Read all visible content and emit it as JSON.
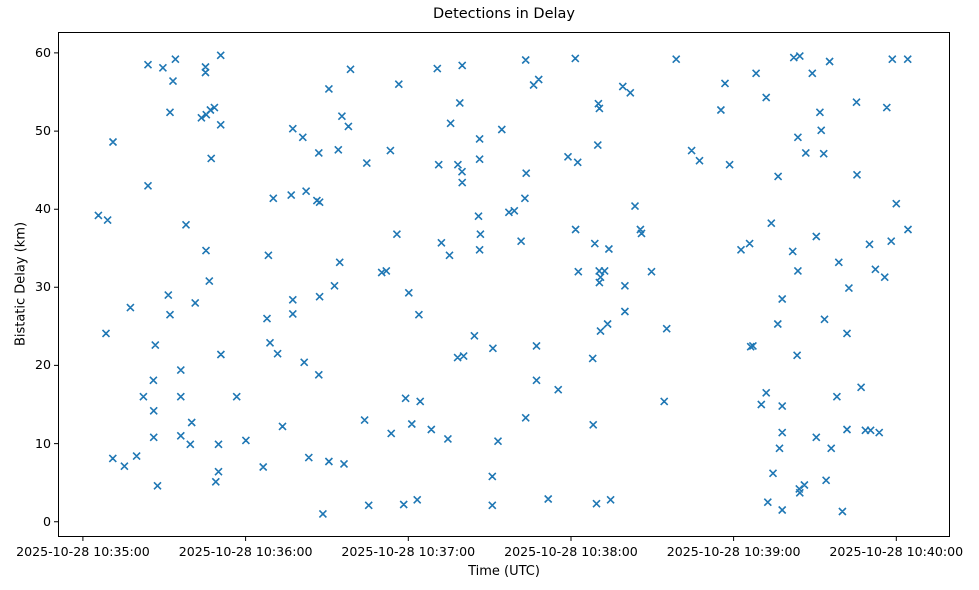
{
  "figure": {
    "background": "#ffffff",
    "frame_color": "#000000"
  },
  "chart_data": {
    "type": "scatter",
    "title": "Detections in Delay",
    "xlabel": "Time (UTC)",
    "ylabel": "Bistatic Delay (km)",
    "legend": null,
    "grid": false,
    "marker": "x",
    "marker_color": "#1f77b4",
    "x_tick_labels": [
      "2025-10-28 10:35:00",
      "2025-10-28 10:36:00",
      "2025-10-28 10:37:00",
      "2025-10-28 10:38:00",
      "2025-10-28 10:39:00",
      "2025-10-28 10:40:00"
    ],
    "x_tick_seconds": [
      0,
      60,
      120,
      180,
      240,
      300
    ],
    "x_range_seconds": [
      -9.2,
      319.8
    ],
    "y_ticks": [
      0,
      10,
      20,
      30,
      40,
      50,
      60
    ],
    "y_range": [
      -1.96,
      62.68
    ],
    "points_format": "[seconds_after_10:35:00_UTC, bistatic_delay_km]",
    "points": [
      [
        24.0,
        58.5
      ],
      [
        29.5,
        58.1
      ],
      [
        34.1,
        59.2
      ],
      [
        50.8,
        59.7
      ],
      [
        45.2,
        58.2
      ],
      [
        45.2,
        57.5
      ],
      [
        33.2,
        56.4
      ],
      [
        32.1,
        52.4
      ],
      [
        43.7,
        51.7
      ],
      [
        45.5,
        52.1
      ],
      [
        47.0,
        52.7
      ],
      [
        48.5,
        53.0
      ],
      [
        50.8,
        50.8
      ],
      [
        11.1,
        48.6
      ],
      [
        47.3,
        46.5
      ],
      [
        24.0,
        43.0
      ],
      [
        98.7,
        57.9
      ],
      [
        90.7,
        55.4
      ],
      [
        116.5,
        56.0
      ],
      [
        130.7,
        58.0
      ],
      [
        139.9,
        58.4
      ],
      [
        139.0,
        53.6
      ],
      [
        95.5,
        51.9
      ],
      [
        97.9,
        50.6
      ],
      [
        77.4,
        50.3
      ],
      [
        81.1,
        49.2
      ],
      [
        135.6,
        51.0
      ],
      [
        154.5,
        50.2
      ],
      [
        146.3,
        49.0
      ],
      [
        87.0,
        47.2
      ],
      [
        94.2,
        47.6
      ],
      [
        113.4,
        47.5
      ],
      [
        104.7,
        45.9
      ],
      [
        131.2,
        45.7
      ],
      [
        138.3,
        45.7
      ],
      [
        139.8,
        44.8
      ],
      [
        146.3,
        46.4
      ],
      [
        139.9,
        43.4
      ],
      [
        82.3,
        42.3
      ],
      [
        163.3,
        59.1
      ],
      [
        181.6,
        59.3
      ],
      [
        218.8,
        59.2
      ],
      [
        168.1,
        56.6
      ],
      [
        166.2,
        55.9
      ],
      [
        199.1,
        55.7
      ],
      [
        201.9,
        54.9
      ],
      [
        190.1,
        53.5
      ],
      [
        190.5,
        52.9
      ],
      [
        236.8,
        56.1
      ],
      [
        235.3,
        52.7
      ],
      [
        189.9,
        48.2
      ],
      [
        178.9,
        46.7
      ],
      [
        182.5,
        46.0
      ],
      [
        224.5,
        47.5
      ],
      [
        227.4,
        46.2
      ],
      [
        238.5,
        45.7
      ],
      [
        163.5,
        44.6
      ],
      [
        262.2,
        59.4
      ],
      [
        264.4,
        59.6
      ],
      [
        275.4,
        58.9
      ],
      [
        298.5,
        59.2
      ],
      [
        304.2,
        59.2
      ],
      [
        248.3,
        57.4
      ],
      [
        269.0,
        57.4
      ],
      [
        252.0,
        54.3
      ],
      [
        285.3,
        53.7
      ],
      [
        296.5,
        53.0
      ],
      [
        271.8,
        52.4
      ],
      [
        272.3,
        50.1
      ],
      [
        263.7,
        49.2
      ],
      [
        266.6,
        47.2
      ],
      [
        273.2,
        47.1
      ],
      [
        256.4,
        44.2
      ],
      [
        285.5,
        44.4
      ],
      [
        70.2,
        41.4
      ],
      [
        5.7,
        39.2
      ],
      [
        9.1,
        38.6
      ],
      [
        38.0,
        38.0
      ],
      [
        45.4,
        34.7
      ],
      [
        68.4,
        34.1
      ],
      [
        46.6,
        30.8
      ],
      [
        31.5,
        29.0
      ],
      [
        41.4,
        28.0
      ],
      [
        17.5,
        27.4
      ],
      [
        32.1,
        26.5
      ],
      [
        67.9,
        26.0
      ],
      [
        8.5,
        24.1
      ],
      [
        26.7,
        22.6
      ],
      [
        50.9,
        21.4
      ],
      [
        69.0,
        22.9
      ],
      [
        71.8,
        21.5
      ],
      [
        76.8,
        41.8
      ],
      [
        86.3,
        41.1
      ],
      [
        87.3,
        40.9
      ],
      [
        115.8,
        36.8
      ],
      [
        132.2,
        35.7
      ],
      [
        135.2,
        34.1
      ],
      [
        145.9,
        39.1
      ],
      [
        146.6,
        36.8
      ],
      [
        146.3,
        34.8
      ],
      [
        157.1,
        39.6
      ],
      [
        159.1,
        39.8
      ],
      [
        94.7,
        33.2
      ],
      [
        110.2,
        31.9
      ],
      [
        111.9,
        32.1
      ],
      [
        92.8,
        30.2
      ],
      [
        87.3,
        28.8
      ],
      [
        77.4,
        28.4
      ],
      [
        77.4,
        26.6
      ],
      [
        120.2,
        29.3
      ],
      [
        123.9,
        26.5
      ],
      [
        144.4,
        23.8
      ],
      [
        151.2,
        22.2
      ],
      [
        138.2,
        21.0
      ],
      [
        140.4,
        21.2
      ],
      [
        163.0,
        41.4
      ],
      [
        203.6,
        40.4
      ],
      [
        181.7,
        37.4
      ],
      [
        205.6,
        37.4
      ],
      [
        206.0,
        36.9
      ],
      [
        161.6,
        35.9
      ],
      [
        188.8,
        35.6
      ],
      [
        194.0,
        34.9
      ],
      [
        242.7,
        34.8
      ],
      [
        245.9,
        35.6
      ],
      [
        182.7,
        32.0
      ],
      [
        190.4,
        32.1
      ],
      [
        192.4,
        32.1
      ],
      [
        190.9,
        31.3
      ],
      [
        190.5,
        30.6
      ],
      [
        199.9,
        30.2
      ],
      [
        209.7,
        32.0
      ],
      [
        199.9,
        26.9
      ],
      [
        193.5,
        25.3
      ],
      [
        190.9,
        24.4
      ],
      [
        215.3,
        24.7
      ],
      [
        167.3,
        22.5
      ],
      [
        188.0,
        20.9
      ],
      [
        246.3,
        22.4
      ],
      [
        300.0,
        40.7
      ],
      [
        253.9,
        38.2
      ],
      [
        304.3,
        37.4
      ],
      [
        270.5,
        36.5
      ],
      [
        261.8,
        34.6
      ],
      [
        290.1,
        35.5
      ],
      [
        298.1,
        35.9
      ],
      [
        278.8,
        33.2
      ],
      [
        263.7,
        32.1
      ],
      [
        292.3,
        32.3
      ],
      [
        295.7,
        31.3
      ],
      [
        282.5,
        29.9
      ],
      [
        257.9,
        28.5
      ],
      [
        256.3,
        25.3
      ],
      [
        273.5,
        25.9
      ],
      [
        281.8,
        24.1
      ],
      [
        247.1,
        22.5
      ],
      [
        263.4,
        21.3
      ],
      [
        36.1,
        19.4
      ],
      [
        26.0,
        18.1
      ],
      [
        22.3,
        16.0
      ],
      [
        36.1,
        16.0
      ],
      [
        56.7,
        16.0
      ],
      [
        26.1,
        14.2
      ],
      [
        40.1,
        12.7
      ],
      [
        73.6,
        12.2
      ],
      [
        26.1,
        10.8
      ],
      [
        36.1,
        11.0
      ],
      [
        39.6,
        9.9
      ],
      [
        50.0,
        9.9
      ],
      [
        60.1,
        10.4
      ],
      [
        11.0,
        8.1
      ],
      [
        15.3,
        7.1
      ],
      [
        19.8,
        8.4
      ],
      [
        66.5,
        7.0
      ],
      [
        50.0,
        6.4
      ],
      [
        49.0,
        5.1
      ],
      [
        27.5,
        4.6
      ],
      [
        81.6,
        20.4
      ],
      [
        87.0,
        18.8
      ],
      [
        119.0,
        15.8
      ],
      [
        124.4,
        15.4
      ],
      [
        103.9,
        13.0
      ],
      [
        121.3,
        12.5
      ],
      [
        113.7,
        11.3
      ],
      [
        128.5,
        11.8
      ],
      [
        134.6,
        10.6
      ],
      [
        153.1,
        10.3
      ],
      [
        83.3,
        8.2
      ],
      [
        90.7,
        7.7
      ],
      [
        96.3,
        7.4
      ],
      [
        151.0,
        5.8
      ],
      [
        123.3,
        2.8
      ],
      [
        118.3,
        2.2
      ],
      [
        105.4,
        2.1
      ],
      [
        88.5,
        1.0
      ],
      [
        151.0,
        2.1
      ],
      [
        167.3,
        18.1
      ],
      [
        175.3,
        16.9
      ],
      [
        214.4,
        15.4
      ],
      [
        163.3,
        13.3
      ],
      [
        188.2,
        12.4
      ],
      [
        171.6,
        2.9
      ],
      [
        189.4,
        2.3
      ],
      [
        194.6,
        2.8
      ],
      [
        287.0,
        17.2
      ],
      [
        252.0,
        16.5
      ],
      [
        278.1,
        16.0
      ],
      [
        250.2,
        15.0
      ],
      [
        257.9,
        14.8
      ],
      [
        257.9,
        11.4
      ],
      [
        281.8,
        11.8
      ],
      [
        270.5,
        10.8
      ],
      [
        288.6,
        11.7
      ],
      [
        290.5,
        11.7
      ],
      [
        293.7,
        11.4
      ],
      [
        256.9,
        9.4
      ],
      [
        276.0,
        9.4
      ],
      [
        254.5,
        6.2
      ],
      [
        274.1,
        5.3
      ],
      [
        266.1,
        4.7
      ],
      [
        264.2,
        4.2
      ],
      [
        264.4,
        3.7
      ],
      [
        252.6,
        2.5
      ],
      [
        257.9,
        1.5
      ],
      [
        280.1,
        1.3
      ]
    ]
  }
}
